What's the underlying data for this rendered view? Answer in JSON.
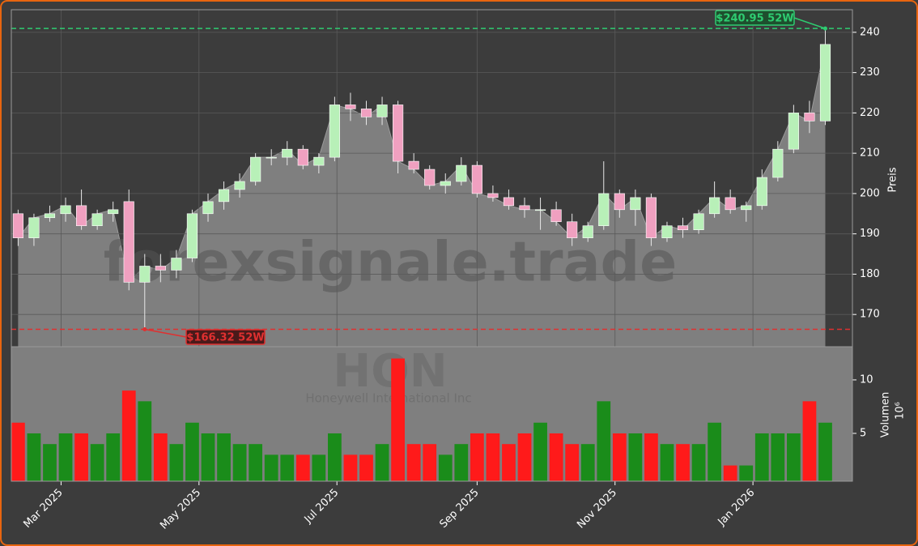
{
  "chart_data": {
    "type": "candlestick",
    "ticker_watermark": "HON",
    "company_watermark": "Honeywell International Inc",
    "site_watermark": "forexsignale.trade",
    "ylabel": "Preis",
    "y2label": "Volumen",
    "y2unit": "10⁶",
    "up_color": "#1a8c1a",
    "down_color": "#ff1a1a",
    "area_color": "#7f7f7f",
    "grid": true,
    "xlim": [
      "2025-02-07",
      "2026-02-14"
    ],
    "xticks": [
      {
        "value": "2025-03-01",
        "label": "Mar 2025"
      },
      {
        "value": "2025-05-01",
        "label": "May 2025"
      },
      {
        "value": "2025-07-01",
        "label": "Jul 2025"
      },
      {
        "value": "2025-09-01",
        "label": "Sep 2025"
      },
      {
        "value": "2025-11-01",
        "label": "Nov 2025"
      },
      {
        "value": "2026-01-01",
        "label": "Jan 2026"
      }
    ],
    "ylim": [
      162,
      245.6
    ],
    "yticks": [
      170,
      180,
      190,
      200,
      210,
      220,
      230,
      240
    ],
    "y2lim": [
      0.53,
      13.1
    ],
    "y2ticks": [
      5,
      10
    ],
    "annotations": [
      {
        "text": "$240.95 52W",
        "value": 240.95,
        "x": "2026-02-02",
        "color": "#2ecc71"
      },
      {
        "text": "$166.32 52W",
        "value": 166.32,
        "x": "2025-04-07",
        "color": "#e03030"
      }
    ],
    "x": [
      "2025-02-10",
      "2025-02-17",
      "2025-02-24",
      "2025-03-03",
      "2025-03-10",
      "2025-03-17",
      "2025-03-24",
      "2025-03-31",
      "2025-04-07",
      "2025-04-14",
      "2025-04-21",
      "2025-04-28",
      "2025-05-05",
      "2025-05-12",
      "2025-05-19",
      "2025-05-26",
      "2025-06-02",
      "2025-06-09",
      "2025-06-16",
      "2025-06-23",
      "2025-06-30",
      "2025-07-07",
      "2025-07-14",
      "2025-07-21",
      "2025-07-28",
      "2025-08-04",
      "2025-08-11",
      "2025-08-18",
      "2025-08-25",
      "2025-09-01",
      "2025-09-08",
      "2025-09-15",
      "2025-09-22",
      "2025-09-29",
      "2025-10-06",
      "2025-10-13",
      "2025-10-20",
      "2025-10-27",
      "2025-11-03",
      "2025-11-10",
      "2025-11-17",
      "2025-11-24",
      "2025-12-01",
      "2025-12-08",
      "2025-12-15",
      "2025-12-22",
      "2025-12-29",
      "2026-01-05",
      "2026-01-12",
      "2026-01-19",
      "2026-01-26",
      "2026-02-02"
    ],
    "open": [
      195,
      189,
      194,
      195,
      197,
      192,
      195,
      198,
      178,
      182,
      181,
      184,
      195,
      198,
      201,
      203,
      209,
      209,
      211,
      207,
      209,
      222,
      221,
      219,
      222,
      208,
      206,
      202,
      203,
      207,
      200,
      199,
      197,
      196,
      196,
      193,
      189,
      192,
      200,
      196,
      199,
      189,
      192,
      191,
      195,
      199,
      196,
      197,
      204,
      211,
      220,
      218
    ],
    "high": [
      196,
      195,
      197,
      199,
      201,
      196,
      198,
      201,
      185,
      185,
      186,
      196,
      200,
      203,
      205,
      210,
      211,
      213,
      212,
      210,
      224,
      225,
      223,
      224,
      223,
      210,
      207,
      205,
      209,
      208,
      202,
      201,
      199,
      199,
      198,
      195,
      193,
      208,
      201,
      201,
      200,
      193,
      194,
      196,
      203,
      201,
      198,
      206,
      213,
      222,
      223,
      241
    ],
    "low": [
      187,
      187,
      193,
      193,
      191,
      191,
      193,
      176,
      166.32,
      178,
      179,
      183,
      193,
      196,
      199,
      202,
      207,
      207,
      206,
      205,
      208,
      218,
      217,
      217,
      205,
      205,
      201,
      200,
      202,
      199,
      198,
      196,
      194,
      191,
      192,
      187,
      188,
      191,
      194,
      192,
      187,
      188,
      189,
      190,
      194,
      195,
      193,
      196,
      203,
      210,
      215,
      217
    ],
    "close": [
      189,
      194,
      195,
      197,
      192,
      195,
      196,
      178,
      182,
      181,
      184,
      195,
      198,
      201,
      203,
      209,
      209,
      211,
      207,
      209,
      222,
      221,
      219,
      222,
      208,
      206,
      202,
      203,
      207,
      200,
      199,
      197,
      196,
      196,
      193,
      189,
      192,
      200,
      196,
      199,
      189,
      192,
      191,
      195,
      199,
      196,
      197,
      204,
      211,
      220,
      218,
      237
    ],
    "volume": [
      6,
      5,
      4,
      5,
      5,
      4,
      5,
      9,
      8,
      5,
      4,
      6,
      5,
      5,
      4,
      4,
      3,
      3,
      3,
      3,
      5,
      3,
      3,
      4,
      12,
      4,
      4,
      3,
      4,
      5,
      5,
      4,
      5,
      6,
      5,
      4,
      4,
      8,
      5,
      5,
      5,
      4,
      4,
      4,
      6,
      2,
      2,
      5,
      5,
      5,
      8,
      6
    ]
  }
}
